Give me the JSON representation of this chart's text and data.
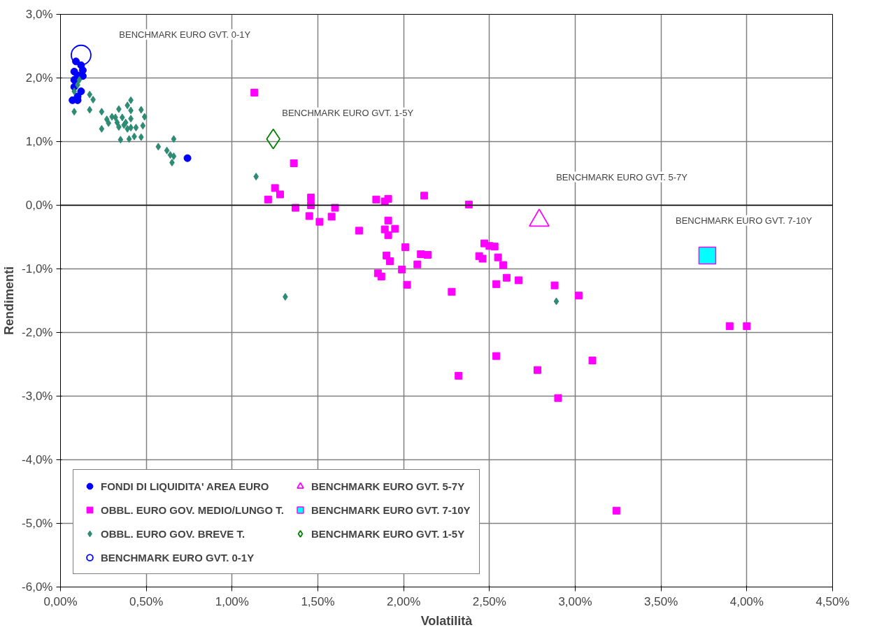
{
  "chart_data": {
    "type": "scatter",
    "xlabel": "Volatilità",
    "ylabel": "Rendimenti",
    "xlim": [
      0,
      4.5
    ],
    "ylim": [
      -6,
      3
    ],
    "xticks": [
      {
        "value": 0,
        "label": "0,00%"
      },
      {
        "value": 0.5,
        "label": "0,50%"
      },
      {
        "value": 1,
        "label": "1,00%"
      },
      {
        "value": 1.5,
        "label": "1,50%"
      },
      {
        "value": 2,
        "label": "2,00%"
      },
      {
        "value": 2.5,
        "label": "2,50%"
      },
      {
        "value": 3,
        "label": "3,00%"
      },
      {
        "value": 3.5,
        "label": "3,50%"
      },
      {
        "value": 4,
        "label": "4,00%"
      },
      {
        "value": 4.5,
        "label": "4,50%"
      }
    ],
    "yticks": [
      {
        "value": -6,
        "label": "-6,0%"
      },
      {
        "value": -5,
        "label": "-5,0%"
      },
      {
        "value": -4,
        "label": "-4,0%"
      },
      {
        "value": -3,
        "label": "-3,0%"
      },
      {
        "value": -2,
        "label": "-2,0%"
      },
      {
        "value": -1,
        "label": "-1,0%"
      },
      {
        "value": 0,
        "label": "0,0%"
      },
      {
        "value": 1,
        "label": "1,0%"
      },
      {
        "value": 2,
        "label": "2,0%"
      },
      {
        "value": 3,
        "label": "3,0%"
      }
    ],
    "grid": true,
    "legend": "bottom left",
    "ref_lines": [
      {
        "axis": "y",
        "value": 0,
        "label": null,
        "color": "#000000"
      }
    ],
    "annotations": [
      "BENCHMARK EURO GVT. 0-1Y",
      "BENCHMARK EURO GVT. 1-5Y",
      "BENCHMARK EURO GVT. 5-7Y",
      "BENCHMARK EURO GVT. 7-10Y"
    ],
    "series": [
      {
        "name": "FONDI DI LIQUIDITA' AREA EURO",
        "color": "#0000ff",
        "marker": "circle",
        "x": [
          0.09,
          0.12,
          0.08,
          0.1,
          0.13,
          0.08,
          0.08,
          0.12,
          0.07,
          0.1,
          0.1,
          0.13,
          0.74
        ],
        "values": [
          2.26,
          2.2,
          2.1,
          2.04,
          2.03,
          1.97,
          1.86,
          1.79,
          1.65,
          1.65,
          1.71,
          2.12,
          0.74
        ]
      },
      {
        "name": "OBBL. EURO GOV. MEDIO/LUNGO T.",
        "color": "#ff00ff",
        "marker": "square",
        "x": [
          1.13,
          1.36,
          1.25,
          1.28,
          1.21,
          1.46,
          1.46,
          1.37,
          1.45,
          1.51,
          1.6,
          1.58,
          1.74,
          1.84,
          1.89,
          1.91,
          1.91,
          1.89,
          1.95,
          1.91,
          1.9,
          1.92,
          1.85,
          1.87,
          2.01,
          1.99,
          2.02,
          2.12,
          2.1,
          2.14,
          2.08,
          2.28,
          2.38,
          2.32,
          2.47,
          2.5,
          2.53,
          2.44,
          2.46,
          2.55,
          2.58,
          2.6,
          2.67,
          2.54,
          2.54,
          2.78,
          2.88,
          2.9,
          3.02,
          3.1,
          3.24,
          3.9,
          4.0
        ],
        "values": [
          1.77,
          0.66,
          0.27,
          0.17,
          0.09,
          0.12,
          0.0,
          -0.04,
          -0.17,
          -0.26,
          -0.04,
          -0.18,
          -0.4,
          0.09,
          0.06,
          0.1,
          -0.24,
          -0.38,
          -0.37,
          -0.47,
          -0.79,
          -0.88,
          -1.07,
          -1.12,
          -0.66,
          -1.01,
          -1.25,
          0.15,
          -0.77,
          -0.78,
          -0.93,
          -1.36,
          0.01,
          -2.68,
          -0.6,
          -0.64,
          -0.65,
          -0.8,
          -0.84,
          -0.82,
          -0.94,
          -1.14,
          -1.18,
          -1.24,
          -2.37,
          -2.59,
          -1.26,
          -3.03,
          -1.42,
          -2.44,
          -4.8,
          -1.9,
          -1.9
        ]
      },
      {
        "name": "OBBL. EURO GOV. BREVE T.",
        "color": "#2e8b74",
        "marker": "diamond",
        "x": [
          0.08,
          0.17,
          0.17,
          0.19,
          0.24,
          0.24,
          0.27,
          0.28,
          0.3,
          0.32,
          0.33,
          0.34,
          0.36,
          0.34,
          0.37,
          0.38,
          0.39,
          0.41,
          0.41,
          0.41,
          0.39,
          0.41,
          0.44,
          0.47,
          0.49,
          0.48,
          0.47,
          0.43,
          0.4,
          0.35,
          0.57,
          0.62,
          0.64,
          0.66,
          0.65,
          0.66,
          0.08,
          0.1,
          0.11,
          1.14,
          1.31,
          2.89
        ],
        "values": [
          1.47,
          1.5,
          1.74,
          1.66,
          1.47,
          1.2,
          1.35,
          1.29,
          1.39,
          1.38,
          1.3,
          1.51,
          1.38,
          1.23,
          1.26,
          1.3,
          1.57,
          1.65,
          1.49,
          1.36,
          1.2,
          1.22,
          1.22,
          1.5,
          1.39,
          1.25,
          1.07,
          1.08,
          1.04,
          1.03,
          0.92,
          0.86,
          0.79,
          0.77,
          0.67,
          1.04,
          1.79,
          1.89,
          1.97,
          0.45,
          -1.44,
          -1.51
        ]
      },
      {
        "name": "BENCHMARK EURO GVT. 0-1Y",
        "color": "#0000ff",
        "marker": "circle",
        "x": [
          0.12
        ],
        "values": [
          2.36
        ]
      },
      {
        "name": "BENCHMARK EURO GVT. 5-7Y",
        "color": "#ff00ff",
        "marker": "triangle",
        "x": [
          2.79
        ],
        "values": [
          -0.24
        ]
      },
      {
        "name": "BENCHMARK EURO GVT. 7-10Y",
        "color": "#00ffff",
        "marker": "square",
        "x": [
          3.77
        ],
        "values": [
          -0.79
        ]
      },
      {
        "name": "BENCHMARK EURO GVT. 1-5Y",
        "color": "#008000",
        "marker": "diamond",
        "x": [
          1.24
        ],
        "values": [
          1.04
        ]
      }
    ]
  }
}
